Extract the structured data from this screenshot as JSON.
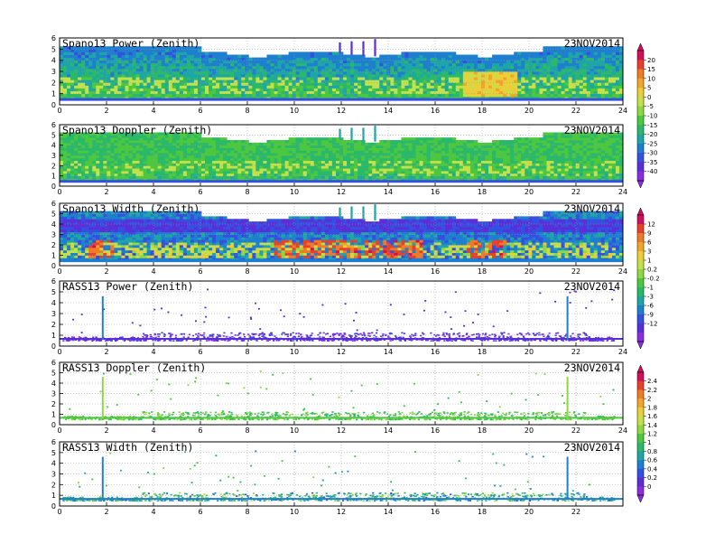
{
  "figure_date": "23NOV2014",
  "chart_data": [
    {
      "type": "heatmap",
      "title": "Spano13 Power (Zenith)",
      "xlim": [
        0,
        24
      ],
      "ylim": [
        0,
        6
      ],
      "xticks": [
        "0",
        "2",
        "4",
        "6",
        "8",
        "10",
        "12",
        "14",
        "16",
        "18",
        "20",
        "22",
        "24"
      ],
      "yticks": [
        "0",
        "1",
        "2",
        "3",
        "4",
        "5",
        "6"
      ]
    },
    {
      "type": "heatmap",
      "title": "Spano13 Doppler (Zenith)",
      "xlim": [
        0,
        24
      ],
      "ylim": [
        0,
        6
      ],
      "xticks": [
        "0",
        "2",
        "4",
        "6",
        "8",
        "10",
        "12",
        "14",
        "16",
        "18",
        "20",
        "22",
        "24"
      ],
      "yticks": [
        "0",
        "1",
        "2",
        "3",
        "4",
        "5",
        "6"
      ]
    },
    {
      "type": "heatmap",
      "title": "Spano13 Width (Zenith)",
      "xlim": [
        0,
        24
      ],
      "ylim": [
        0,
        6
      ],
      "xticks": [
        "0",
        "2",
        "4",
        "6",
        "8",
        "10",
        "12",
        "14",
        "16",
        "18",
        "20",
        "22",
        "24"
      ],
      "yticks": [
        "0",
        "1",
        "2",
        "3",
        "4",
        "5",
        "6"
      ]
    },
    {
      "type": "heatmap",
      "title": "RASS13 Power (Zenith)",
      "xlim": [
        0,
        24
      ],
      "ylim": [
        0,
        6
      ],
      "xticks": [
        "0",
        "2",
        "4",
        "6",
        "8",
        "10",
        "12",
        "14",
        "16",
        "18",
        "20",
        "22",
        "24"
      ],
      "yticks": [
        "0",
        "1",
        "2",
        "3",
        "4",
        "5",
        "6"
      ]
    },
    {
      "type": "heatmap",
      "title": "RASS13 Doppler (Zenith)",
      "xlim": [
        0,
        24
      ],
      "ylim": [
        0,
        6
      ],
      "xticks": [
        "0",
        "2",
        "4",
        "6",
        "8",
        "10",
        "12",
        "14",
        "16",
        "18",
        "20",
        "22",
        "24"
      ],
      "yticks": [
        "0",
        "1",
        "2",
        "3",
        "4",
        "5",
        "6"
      ]
    },
    {
      "type": "heatmap",
      "title": "RASS13 Width (Zenith)",
      "xlim": [
        0,
        24
      ],
      "ylim": [
        0,
        6
      ],
      "xticks": [
        "0",
        "2",
        "4",
        "6",
        "8",
        "10",
        "12",
        "14",
        "16",
        "18",
        "20",
        "22"
      ],
      "yticks": [
        "0",
        "1",
        "2",
        "3",
        "4",
        "5",
        "6"
      ]
    }
  ],
  "colorbars": [
    {
      "labels": [
        "20",
        "15",
        "10",
        "5",
        "0",
        "-5",
        "-10",
        "-15",
        "-20",
        "-25",
        "-30",
        "-35",
        "-40"
      ],
      "colors": [
        "#d0105a",
        "#e8402a",
        "#f07a25",
        "#f2a52b",
        "#e9cf3a",
        "#c4e04a",
        "#8ed845",
        "#4cc83e",
        "#2ab86a",
        "#1ea6a6",
        "#1e7fd0",
        "#3550e0",
        "#5a2ed8",
        "#8a2ee0"
      ]
    },
    {
      "labels": [
        "12",
        "9",
        "6",
        "3",
        "1",
        "0.2",
        "-0.2",
        "-1",
        "-3",
        "-6",
        "-9",
        "-12"
      ],
      "colors": [
        "#d0105a",
        "#e8402a",
        "#f07a25",
        "#f2a52b",
        "#e9cf3a",
        "#c4e04a",
        "#8ed845",
        "#4cc83e",
        "#2ab86a",
        "#1ea6a6",
        "#1e7fd0",
        "#3550e0",
        "#5a2ed8",
        "#8a2ee0"
      ]
    },
    {
      "labels": [
        "2.4",
        "2.2",
        "2",
        "1.8",
        "1.6",
        "1.4",
        "1.2",
        "1",
        "0.8",
        "0.6",
        "0.4",
        "0.2",
        "0"
      ],
      "colors": [
        "#d0105a",
        "#e8402a",
        "#f07a25",
        "#f2a52b",
        "#e9cf3a",
        "#c4e04a",
        "#8ed845",
        "#4cc83e",
        "#2ab86a",
        "#1ea6a6",
        "#1e7fd0",
        "#3550e0",
        "#5a2ed8",
        "#8a2ee0"
      ]
    }
  ]
}
